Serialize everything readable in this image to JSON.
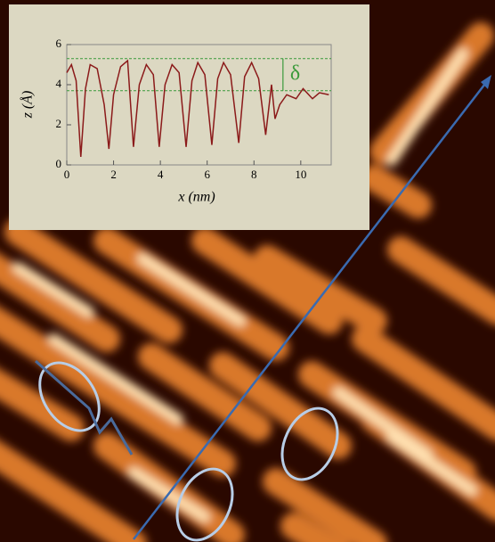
{
  "chart_data": {
    "type": "line",
    "xlabel": "x (nm)",
    "ylabel": "z (Å)",
    "x": [
      0,
      0.2,
      0.4,
      0.6,
      0.8,
      1.0,
      1.3,
      1.6,
      1.8,
      2.0,
      2.3,
      2.6,
      2.85,
      3.1,
      3.4,
      3.7,
      3.95,
      4.2,
      4.5,
      4.8,
      5.1,
      5.35,
      5.6,
      5.9,
      6.2,
      6.45,
      6.7,
      7.0,
      7.35,
      7.6,
      7.9,
      8.2,
      8.5,
      8.75,
      8.9,
      9.1,
      9.4,
      9.8,
      10.1,
      10.5,
      10.8,
      11.2
    ],
    "values": [
      4.6,
      5.0,
      4.2,
      0.4,
      3.8,
      5.0,
      4.8,
      3.0,
      0.8,
      3.5,
      4.9,
      5.2,
      0.9,
      4.0,
      5.0,
      4.5,
      0.9,
      4.0,
      5.0,
      4.6,
      0.9,
      4.2,
      5.1,
      4.5,
      1.0,
      4.3,
      5.1,
      4.5,
      1.1,
      4.4,
      5.1,
      4.3,
      1.5,
      4.0,
      2.3,
      3.0,
      3.5,
      3.3,
      3.8,
      3.3,
      3.6,
      3.5
    ],
    "color": "#8b1a1a",
    "xlim": [
      0,
      11.3
    ],
    "ylim": [
      0,
      6
    ],
    "xticks": [
      0,
      2,
      4,
      6,
      8,
      10
    ],
    "yticks": [
      0,
      2,
      4,
      6
    ],
    "reference_lines": [
      5.3,
      3.7
    ],
    "reference_color": "#3a9a3a",
    "annotation": "δ"
  }
}
